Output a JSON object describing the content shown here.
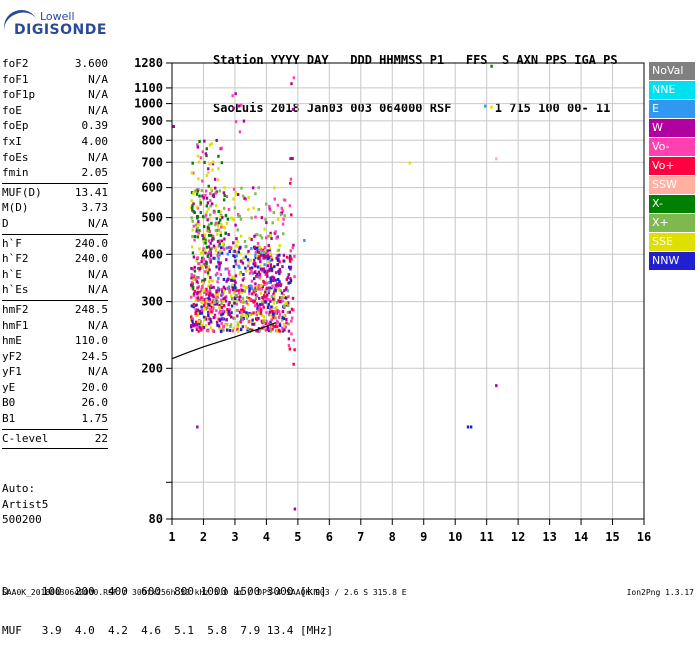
{
  "logo": {
    "line1": "Lowell",
    "line2": "DIGISONDE"
  },
  "header": {
    "row1": "Station YYYY DAY   DDD HHMMSS P1   FFS  S AXN PPS IGA PS",
    "row2": "SaoLuis 2018 Jan03 003 064000 RSF      1 715 100 00- 11"
  },
  "params": [
    {
      "k": "foF2",
      "v": "3.600"
    },
    {
      "k": "foF1",
      "v": "N/A"
    },
    {
      "k": "foF1p",
      "v": "N/A"
    },
    {
      "k": "foE",
      "v": "N/A"
    },
    {
      "k": "foEp",
      "v": "0.39"
    },
    {
      "k": "fxI",
      "v": "4.00"
    },
    {
      "k": "foEs",
      "v": "N/A"
    },
    {
      "k": "fmin",
      "v": "2.05"
    },
    {
      "sep": true
    },
    {
      "k": "MUF(D)",
      "v": "13.41"
    },
    {
      "k": "M(D)",
      "v": "3.73"
    },
    {
      "k": "D",
      "v": "N/A"
    },
    {
      "sep": true
    },
    {
      "k": "h`F",
      "v": "240.0"
    },
    {
      "k": "h`F2",
      "v": "240.0"
    },
    {
      "k": "h`E",
      "v": "N/A"
    },
    {
      "k": "h`Es",
      "v": "N/A"
    },
    {
      "sep": true
    },
    {
      "k": "hmF2",
      "v": "248.5"
    },
    {
      "k": "hmF1",
      "v": "N/A"
    },
    {
      "k": "hmE",
      "v": "110.0"
    },
    {
      "k": "yF2",
      "v": "24.5"
    },
    {
      "k": "yF1",
      "v": "N/A"
    },
    {
      "k": "yE",
      "v": "20.0"
    },
    {
      "k": "B0",
      "v": "26.0"
    },
    {
      "k": "B1",
      "v": "1.75"
    },
    {
      "sep": true
    },
    {
      "k": "C-level",
      "v": "22"
    },
    {
      "sep": true
    }
  ],
  "auto": {
    "line1": "Auto:",
    "line2": "Artist5",
    "line3": "500200"
  },
  "dtable": {
    "row1": "D     100  200  400  600  800 1000 1500 3000 [km]",
    "row2": "MUF   3.9  4.0  4.2  4.6  5.1  5.8  7.9 13.4 [MHz]"
  },
  "footer": "SAA0K_20180030640000.RSF / 300fx256h 50 kHz 5.0 km / DPS-4 SAA0K 903 / 2.6 S 315.8 E",
  "version": "Ion2Png 1.3.17",
  "legend": [
    {
      "label": "NoVal",
      "bg": "#808080",
      "fg": "#ffffff"
    },
    {
      "label": "NNE",
      "bg": "#00e0f0",
      "fg": "#ffffff"
    },
    {
      "label": "E",
      "bg": "#3098f0",
      "fg": "#ffffff"
    },
    {
      "label": "W",
      "bg": "#b000a0",
      "fg": "#ffffff"
    },
    {
      "label": "Vo-",
      "bg": "#ff40b0",
      "fg": "#ffffff"
    },
    {
      "label": "Vo+",
      "bg": "#ff0040",
      "fg": "#ffffff"
    },
    {
      "label": "SSW",
      "bg": "#ffb0a0",
      "fg": "#ffffff"
    },
    {
      "label": "X-",
      "bg": "#008000",
      "fg": "#ffffff"
    },
    {
      "label": "X+",
      "bg": "#80b850",
      "fg": "#ffffff"
    },
    {
      "label": "SSE",
      "bg": "#e0e000",
      "fg": "#ffffff"
    },
    {
      "label": "NNW",
      "bg": "#2020d0",
      "fg": "#ffffff"
    }
  ],
  "chart_data": {
    "type": "scatter",
    "xlim": [
      1,
      16
    ],
    "ylim": [
      80,
      1280
    ],
    "ylog": true,
    "grid": true,
    "x_ticks": [
      1,
      2,
      3,
      4,
      5,
      6,
      7,
      8,
      9,
      10,
      11,
      12,
      13,
      14,
      15,
      16
    ],
    "y_ticks": [
      80,
      100,
      200,
      300,
      400,
      500,
      600,
      700,
      800,
      900,
      1000,
      1100,
      1280
    ],
    "y_tick_labels": [
      "80",
      "",
      "200",
      "300",
      "400",
      "500",
      "600",
      "700",
      "800",
      "900",
      "1000",
      "1100",
      "1280"
    ],
    "trace": [
      [
        1,
        212
      ],
      [
        1.5,
        220
      ],
      [
        2,
        228
      ],
      [
        2.5,
        235
      ],
      [
        3,
        242
      ],
      [
        3.5,
        250
      ],
      [
        4,
        258
      ],
      [
        4.3,
        264
      ]
    ],
    "clusters": [
      {
        "x": [
          1.6,
          2.3
        ],
        "y": [
          250,
          330
        ],
        "n": 160,
        "colors": [
          "#b000a0",
          "#ff40b0",
          "#e0e000",
          "#ff0040",
          "#2020d0"
        ]
      },
      {
        "x": [
          2.3,
          4.7
        ],
        "y": [
          250,
          330
        ],
        "n": 420,
        "colors": [
          "#e0e000",
          "#ff40b0",
          "#b000a0",
          "#ff0040",
          "#80b850",
          "#2020d0"
        ]
      },
      {
        "x": [
          1.6,
          2.3
        ],
        "y": [
          320,
          420
        ],
        "n": 90,
        "colors": [
          "#ff40b0",
          "#b000a0",
          "#e0e000",
          "#008000"
        ]
      },
      {
        "x": [
          2.3,
          4.2
        ],
        "y": [
          320,
          420
        ],
        "n": 200,
        "colors": [
          "#e0e000",
          "#b000a0",
          "#ff40b0",
          "#3098f0",
          "#2020d0"
        ]
      },
      {
        "x": [
          3.6,
          4.8
        ],
        "y": [
          330,
          400
        ],
        "n": 80,
        "colors": [
          "#b000a0",
          "#2020d0",
          "#ff0040"
        ]
      },
      {
        "x": [
          1.6,
          2.8
        ],
        "y": [
          420,
          600
        ],
        "n": 150,
        "colors": [
          "#e0e000",
          "#b000a0",
          "#80b850",
          "#ff40b0",
          "#008000"
        ]
      },
      {
        "x": [
          2.8,
          4.6
        ],
        "y": [
          400,
          600
        ],
        "n": 90,
        "colors": [
          "#b000a0",
          "#e0e000",
          "#ff40b0",
          "#80b850"
        ]
      },
      {
        "x": [
          1.6,
          2.6
        ],
        "y": [
          600,
          800
        ],
        "n": 35,
        "colors": [
          "#b000a0",
          "#008000",
          "#e0e000",
          "#ff40b0"
        ]
      },
      {
        "x": [
          4.7,
          4.9
        ],
        "y": [
          200,
          1280
        ],
        "n": 30,
        "colors": [
          "#b000a0",
          "#ff0040",
          "#ff40b0"
        ]
      },
      {
        "x": [
          2.9,
          3.3
        ],
        "y": [
          800,
          1100
        ],
        "n": 8,
        "colors": [
          "#b000a0",
          "#ff40b0"
        ]
      }
    ],
    "isolated": [
      {
        "x": 8.55,
        "y": 697,
        "color": "#e0e000"
      },
      {
        "x": 10.95,
        "y": 985,
        "color": "#3098f0"
      },
      {
        "x": 11.15,
        "y": 978,
        "color": "#e0e000"
      },
      {
        "x": 11.15,
        "y": 1255,
        "color": "#008000"
      },
      {
        "x": 11.3,
        "y": 715,
        "color": "#ffb0a0"
      },
      {
        "x": 11.3,
        "y": 180,
        "color": "#b000a0"
      },
      {
        "x": 10.4,
        "y": 140,
        "color": "#2020d0"
      },
      {
        "x": 10.5,
        "y": 140,
        "color": "#2020d0"
      },
      {
        "x": 1.8,
        "y": 140,
        "color": "#b000a0"
      },
      {
        "x": 4.9,
        "y": 85,
        "color": "#b000a0"
      },
      {
        "x": 1.05,
        "y": 870,
        "color": "#b000a0"
      },
      {
        "x": 5.2,
        "y": 435,
        "color": "#3098f0"
      }
    ]
  }
}
